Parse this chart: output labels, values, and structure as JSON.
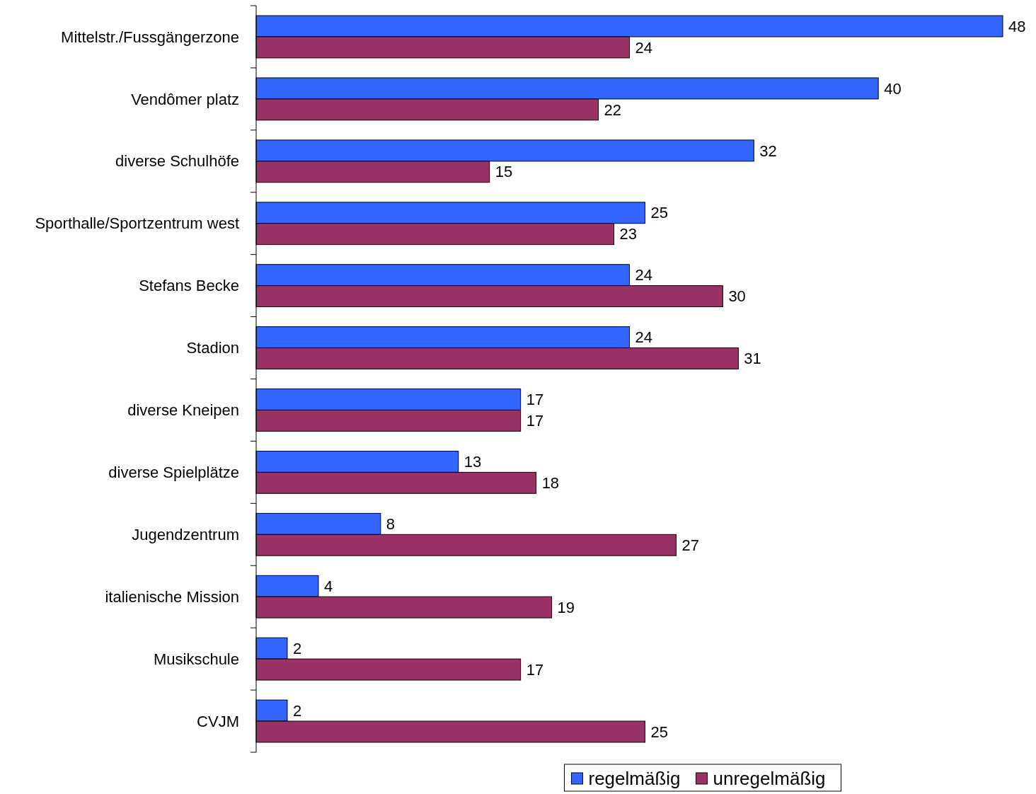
{
  "chart_data": {
    "type": "bar",
    "orientation": "horizontal",
    "categories": [
      "Mittelstr./Fussgängerzone",
      "Vendômer platz",
      "diverse Schulhöfe",
      "Sporthalle/Sportzentrum west",
      "Stefans Becke",
      "Stadion",
      "diverse Kneipen",
      "diverse Spielplätze",
      "Jugendzentrum",
      "italienische Mission",
      "Musikschule",
      "CVJM"
    ],
    "series": [
      {
        "name": "regelmäßig",
        "color": "#3366ff",
        "values": [
          48,
          40,
          32,
          25,
          24,
          24,
          17,
          13,
          8,
          4,
          2,
          2
        ]
      },
      {
        "name": "unregelmäßig",
        "color": "#993366",
        "values": [
          24,
          22,
          15,
          23,
          30,
          31,
          17,
          18,
          27,
          19,
          17,
          25
        ]
      }
    ],
    "data_labels": true,
    "legend": "bottom"
  }
}
